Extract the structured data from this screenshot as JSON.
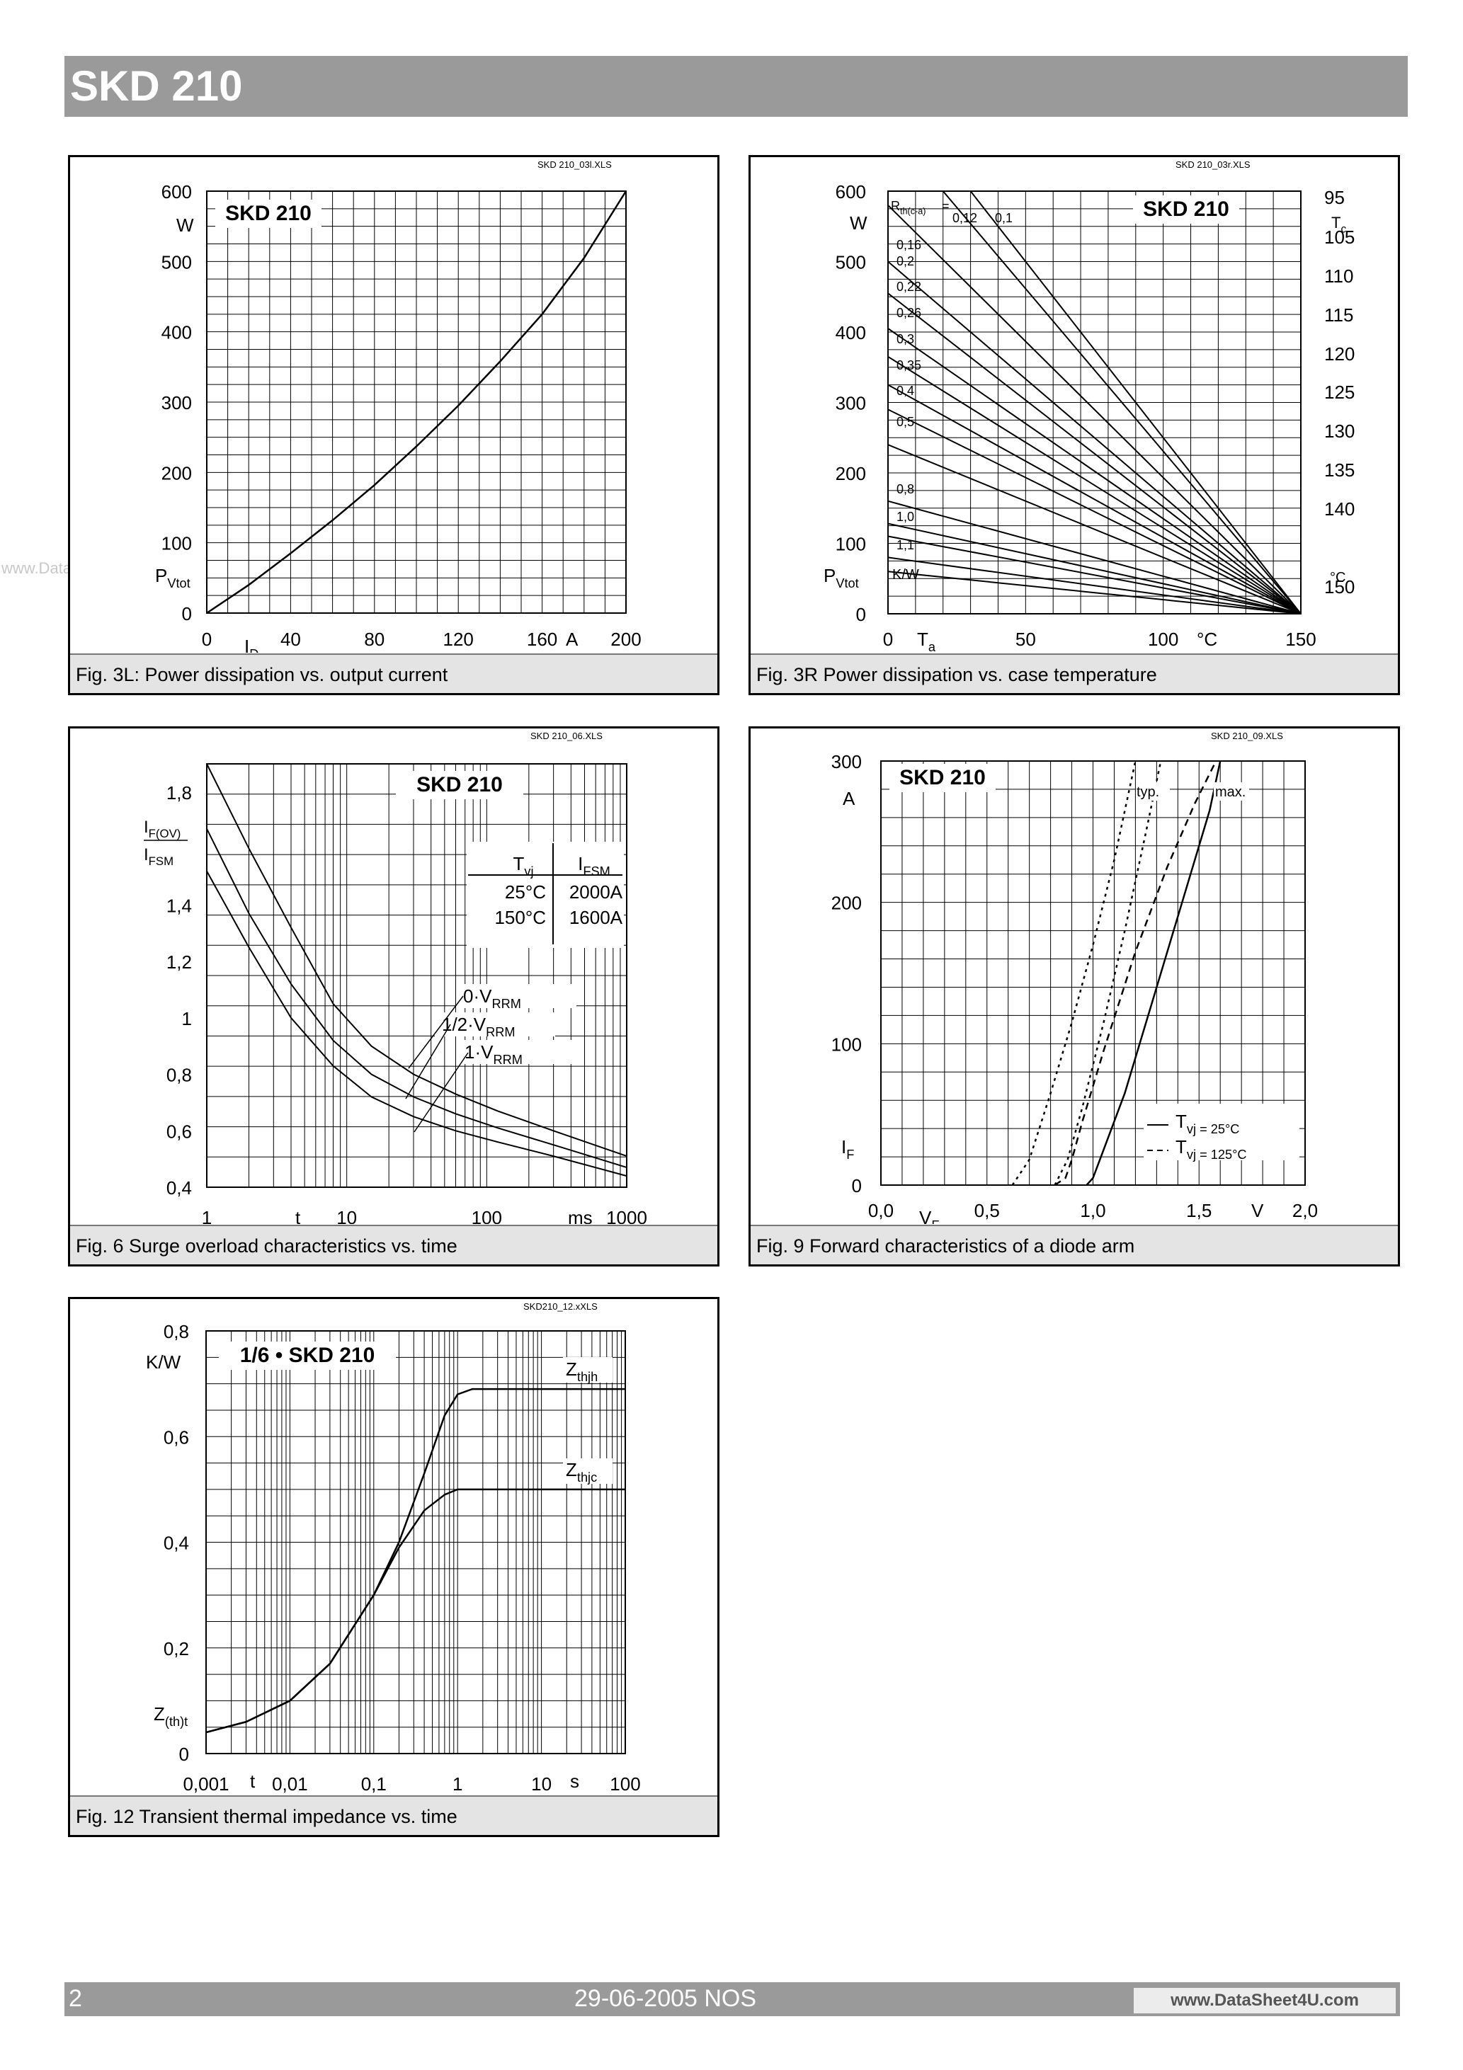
{
  "header": {
    "title": "SKD 210"
  },
  "watermark": "www.DataSheet4U.com",
  "footer": {
    "page": "2",
    "date": "29-06-2005  NOS",
    "site": "www.DataSheet4U.com"
  },
  "colors": {
    "bar": "#9a9a9a",
    "caption_bg": "#e4e4e4"
  },
  "figures": [
    {
      "file": "SKD 210_03l.XLS",
      "label": "SKD 210",
      "caption": "Fig. 3L: Power dissipation vs. output current"
    },
    {
      "file": "SKD 210_03r.XLS",
      "label": "SKD 210",
      "caption": "Fig. 3R Power dissipation vs. case temperature"
    },
    {
      "file": "SKD 210_06.XLS",
      "label": "SKD 210",
      "caption": "Fig. 6 Surge overload characteristics vs. time"
    },
    {
      "file": "SKD 210_09.XLS",
      "label": "SKD 210",
      "caption": "Fig. 9 Forward characteristics of a diode arm"
    },
    {
      "file": "SKD210_12.xXLS",
      "label": "1/6 • SKD 210",
      "caption": "Fig. 12 Transient thermal impedance vs. time"
    }
  ],
  "chart_data": [
    {
      "type": "line",
      "title": "SKD 210",
      "xlabel": "I_D",
      "x_unit": "A",
      "ylabel": "P_Vtot",
      "y_unit": "W",
      "xlim": [
        0,
        200
      ],
      "ylim": [
        0,
        600
      ],
      "x_ticks": [
        "0",
        "40",
        "80",
        "120",
        "160",
        "200"
      ],
      "y_ticks": [
        "0",
        "100",
        "200",
        "300",
        "400",
        "500",
        "600"
      ],
      "grid": true,
      "series": [
        {
          "x": [
            0,
            20,
            40,
            60,
            80,
            100,
            120,
            140,
            160,
            180,
            200
          ],
          "y": [
            0,
            40,
            85,
            132,
            182,
            237,
            295,
            358,
            425,
            505,
            600
          ]
        }
      ]
    },
    {
      "type": "line",
      "title": "SKD 210",
      "xlabel": "T_a",
      "x_unit": "°C",
      "ylabel": "P_Vtot",
      "y_unit": "W",
      "y2label": "T_c",
      "y2_unit": "°C",
      "xlim": [
        0,
        150
      ],
      "ylim": [
        0,
        600
      ],
      "x_ticks": [
        "0",
        "50",
        "100",
        "150"
      ],
      "y_ticks": [
        "0",
        "100",
        "200",
        "300",
        "400",
        "500",
        "600"
      ],
      "y2_ticks": [
        "95",
        "105",
        "110",
        "115",
        "120",
        "125",
        "130",
        "135",
        "140",
        "150"
      ],
      "legend_title": "R_th(c-a) =",
      "legend_unit": "K/W",
      "grid": true,
      "series": [
        {
          "name": "0,1",
          "x": [
            30,
            150
          ],
          "y": [
            600,
            0
          ]
        },
        {
          "name": "0,12",
          "x": [
            20,
            150
          ],
          "y": [
            600,
            0
          ]
        },
        {
          "name": "0,16",
          "x": [
            0,
            150
          ],
          "y": [
            580,
            0
          ]
        },
        {
          "name": "0,2",
          "x": [
            0,
            150
          ],
          "y": [
            500,
            0
          ]
        },
        {
          "name": "0,22",
          "x": [
            0,
            150
          ],
          "y": [
            455,
            0
          ]
        },
        {
          "name": "0,26",
          "x": [
            0,
            150
          ],
          "y": [
            405,
            0
          ]
        },
        {
          "name": "0,3",
          "x": [
            0,
            150
          ],
          "y": [
            365,
            0
          ]
        },
        {
          "name": "0,35",
          "x": [
            0,
            150
          ],
          "y": [
            325,
            0
          ]
        },
        {
          "name": "0,4",
          "x": [
            0,
            150
          ],
          "y": [
            290,
            0
          ]
        },
        {
          "name": "0,5",
          "x": [
            0,
            150
          ],
          "y": [
            240,
            0
          ]
        },
        {
          "name": "0,8",
          "x": [
            0,
            150
          ],
          "y": [
            160,
            0
          ]
        },
        {
          "name": "1,0",
          "x": [
            0,
            150
          ],
          "y": [
            128,
            0
          ]
        },
        {
          "name": "1,1",
          "x": [
            0,
            150
          ],
          "y": [
            110,
            0
          ]
        },
        {
          "name": "",
          "x": [
            0,
            150
          ],
          "y": [
            80,
            0
          ]
        },
        {
          "name": "",
          "x": [
            0,
            150
          ],
          "y": [
            60,
            0
          ]
        }
      ]
    },
    {
      "type": "line",
      "title": "SKD 210",
      "xlabel": "t",
      "x_unit": "ms",
      "ylabel": "I_F(OV) / I_FSM",
      "xscale": "log",
      "xlim": [
        1,
        1000
      ],
      "ylim": [
        0.4,
        1.9
      ],
      "x_ticks": [
        "1",
        "10",
        "100",
        "1000"
      ],
      "y_ticks": [
        "0,4",
        "0,6",
        "0,8",
        "1",
        "1,2",
        "1,4",
        "1,8"
      ],
      "grid": true,
      "table": {
        "header": [
          "T_vj",
          "I_FSM"
        ],
        "rows": [
          [
            "25°C",
            "2000A"
          ],
          [
            "150°C",
            "1600A"
          ]
        ]
      },
      "series": [
        {
          "name": "0·V_RRM",
          "x": [
            1,
            2,
            4,
            8,
            15,
            30,
            60,
            120,
            300,
            1000
          ],
          "y": [
            1.9,
            1.6,
            1.32,
            1.05,
            0.9,
            0.8,
            0.73,
            0.67,
            0.6,
            0.51
          ]
        },
        {
          "name": "1/2·V_RRM",
          "x": [
            1,
            2,
            4,
            8,
            15,
            30,
            60,
            120,
            300,
            1000
          ],
          "y": [
            1.67,
            1.37,
            1.12,
            0.92,
            0.8,
            0.72,
            0.66,
            0.61,
            0.55,
            0.47
          ]
        },
        {
          "name": "1·V_RRM",
          "x": [
            1,
            2,
            4,
            8,
            15,
            30,
            60,
            120,
            300,
            1000
          ],
          "y": [
            1.52,
            1.25,
            1.0,
            0.83,
            0.72,
            0.65,
            0.6,
            0.56,
            0.51,
            0.44
          ]
        }
      ]
    },
    {
      "type": "line",
      "title": "SKD 210",
      "xlabel": "V_F",
      "x_unit": "V",
      "ylabel": "I_F",
      "y_unit": "A",
      "xlim": [
        0,
        2.0
      ],
      "ylim": [
        0,
        300
      ],
      "x_ticks": [
        "0,0",
        "0,5",
        "1,0",
        "1,5",
        "2,0"
      ],
      "y_ticks": [
        "0",
        "100",
        "200",
        "300"
      ],
      "annotations": [
        "typ.",
        "max."
      ],
      "grid": true,
      "series": [
        {
          "name": "T_vj =  25°C",
          "style": "solid",
          "x": [
            0.97,
            1.0,
            1.05,
            1.15,
            1.3,
            1.45,
            1.55,
            1.6
          ],
          "y": [
            0,
            5,
            25,
            65,
            140,
            215,
            265,
            300
          ]
        },
        {
          "name": "T_vj = 125°C",
          "style": "dashed",
          "x": [
            0.82,
            0.87,
            0.9,
            0.95,
            1.05,
            1.2,
            1.35,
            1.48,
            1.58
          ],
          "y": [
            0,
            5,
            18,
            45,
            95,
            165,
            225,
            270,
            300
          ]
        },
        {
          "name": "typ. 125°C",
          "style": "dotted",
          "x": [
            0.62,
            0.7,
            0.8,
            0.9,
            1.0,
            1.1,
            1.2
          ],
          "y": [
            0,
            18,
            65,
            115,
            170,
            230,
            300
          ]
        },
        {
          "name": "typ. 25°C",
          "style": "dotted",
          "x": [
            0.82,
            0.88,
            0.95,
            1.05,
            1.15,
            1.25,
            1.32
          ],
          "y": [
            0,
            18,
            55,
            115,
            180,
            250,
            300
          ]
        }
      ]
    },
    {
      "type": "line",
      "title": "1/6 • SKD 210",
      "xlabel": "t",
      "x_unit": "s",
      "ylabel": "Z_(th)t",
      "y_unit": "K/W",
      "xscale": "log",
      "xlim": [
        0.001,
        100
      ],
      "ylim": [
        0,
        0.8
      ],
      "x_ticks": [
        "0,001",
        "0,01",
        "0,1",
        "1",
        "10",
        "100"
      ],
      "y_ticks": [
        "0",
        "0,2",
        "0,4",
        "0,6",
        "0,8"
      ],
      "grid": true,
      "series": [
        {
          "name": "Z_thjh",
          "x": [
            0.001,
            0.003,
            0.01,
            0.03,
            0.1,
            0.2,
            0.4,
            0.7,
            1,
            1.5,
            2,
            3,
            10,
            100
          ],
          "y": [
            0.04,
            0.06,
            0.1,
            0.17,
            0.3,
            0.4,
            0.53,
            0.64,
            0.68,
            0.69,
            0.69,
            0.69,
            0.69,
            0.69
          ]
        },
        {
          "name": "Z_thjc",
          "x": [
            0.001,
            0.003,
            0.01,
            0.03,
            0.1,
            0.2,
            0.4,
            0.7,
            1,
            1.5,
            2,
            3,
            10,
            100
          ],
          "y": [
            0.04,
            0.06,
            0.1,
            0.17,
            0.3,
            0.39,
            0.46,
            0.49,
            0.5,
            0.5,
            0.5,
            0.5,
            0.5,
            0.5
          ]
        }
      ]
    }
  ]
}
